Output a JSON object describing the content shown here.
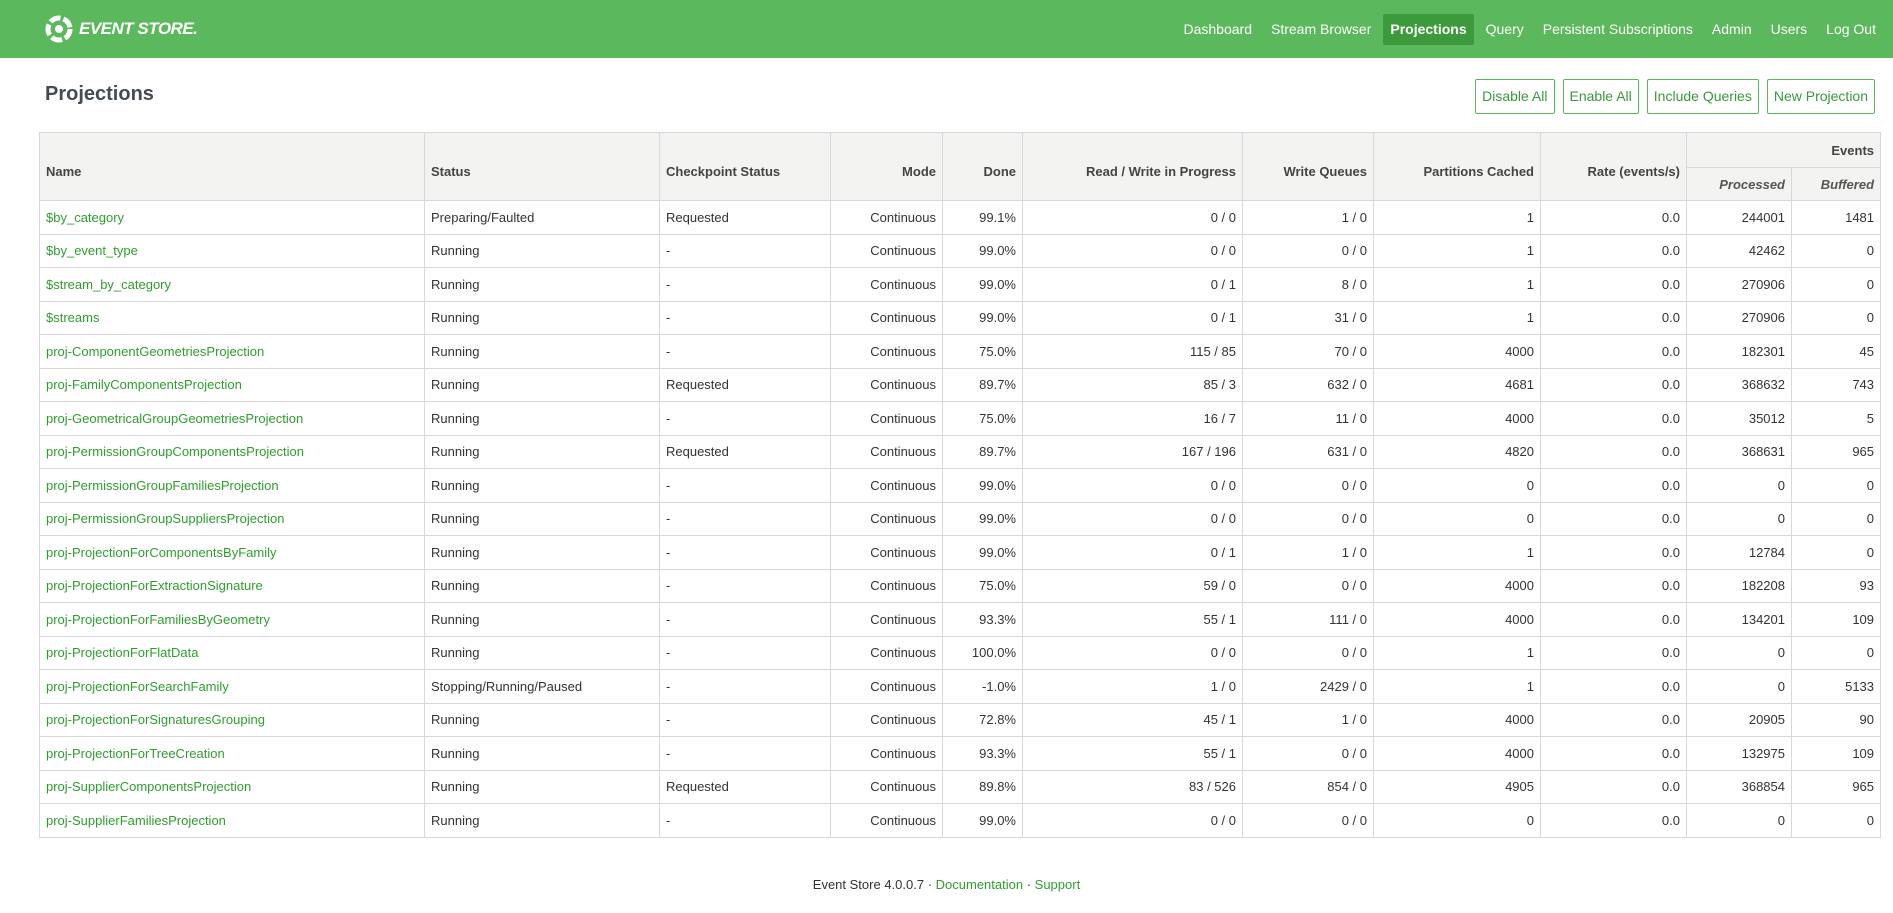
{
  "brand": {
    "logo_text": "EVENT STORE.",
    "colors": {
      "header": "#5cb85c",
      "link": "#2f9e2f",
      "active_nav": "#3c9a3c"
    }
  },
  "nav": {
    "items": [
      {
        "label": "Dashboard",
        "active": false
      },
      {
        "label": "Stream Browser",
        "active": false
      },
      {
        "label": "Projections",
        "active": true
      },
      {
        "label": "Query",
        "active": false
      },
      {
        "label": "Persistent Subscriptions",
        "active": false
      },
      {
        "label": "Admin",
        "active": false
      },
      {
        "label": "Users",
        "active": false
      },
      {
        "label": "Log Out",
        "active": false
      }
    ]
  },
  "page": {
    "title": "Projections",
    "actions": {
      "disable_all": "Disable All",
      "enable_all": "Enable All",
      "include_queries": "Include Queries",
      "new_projection": "New Projection"
    }
  },
  "table": {
    "headers": {
      "name": "Name",
      "status": "Status",
      "checkpoint": "Checkpoint Status",
      "mode": "Mode",
      "done": "Done",
      "rw": "Read / Write in Progress",
      "wq": "Write Queues",
      "pc": "Partitions Cached",
      "rate": "Rate (events/s)",
      "events": "Events",
      "processed": "Processed",
      "buffered": "Buffered"
    },
    "rows": [
      {
        "name": "$by_category",
        "status": "Preparing/Faulted",
        "checkpoint": "Requested",
        "mode": "Continuous",
        "done": "99.1%",
        "rw": "0 / 0",
        "wq": "1 / 0",
        "pc": "1",
        "rate": "0.0",
        "processed": "244001",
        "buffered": "1481"
      },
      {
        "name": "$by_event_type",
        "status": "Running",
        "checkpoint": "-",
        "mode": "Continuous",
        "done": "99.0%",
        "rw": "0 / 0",
        "wq": "0 / 0",
        "pc": "1",
        "rate": "0.0",
        "processed": "42462",
        "buffered": "0"
      },
      {
        "name": "$stream_by_category",
        "status": "Running",
        "checkpoint": "-",
        "mode": "Continuous",
        "done": "99.0%",
        "rw": "0 / 1",
        "wq": "8 / 0",
        "pc": "1",
        "rate": "0.0",
        "processed": "270906",
        "buffered": "0"
      },
      {
        "name": "$streams",
        "status": "Running",
        "checkpoint": "-",
        "mode": "Continuous",
        "done": "99.0%",
        "rw": "0 / 1",
        "wq": "31 / 0",
        "pc": "1",
        "rate": "0.0",
        "processed": "270906",
        "buffered": "0"
      },
      {
        "name": "proj-ComponentGeometriesProjection",
        "status": "Running",
        "checkpoint": "-",
        "mode": "Continuous",
        "done": "75.0%",
        "rw": "115 / 85",
        "wq": "70 / 0",
        "pc": "4000",
        "rate": "0.0",
        "processed": "182301",
        "buffered": "45"
      },
      {
        "name": "proj-FamilyComponentsProjection",
        "status": "Running",
        "checkpoint": "Requested",
        "mode": "Continuous",
        "done": "89.7%",
        "rw": "85 / 3",
        "wq": "632 / 0",
        "pc": "4681",
        "rate": "0.0",
        "processed": "368632",
        "buffered": "743"
      },
      {
        "name": "proj-GeometricalGroupGeometriesProjection",
        "status": "Running",
        "checkpoint": "-",
        "mode": "Continuous",
        "done": "75.0%",
        "rw": "16 / 7",
        "wq": "11 / 0",
        "pc": "4000",
        "rate": "0.0",
        "processed": "35012",
        "buffered": "5"
      },
      {
        "name": "proj-PermissionGroupComponentsProjection",
        "status": "Running",
        "checkpoint": "Requested",
        "mode": "Continuous",
        "done": "89.7%",
        "rw": "167 / 196",
        "wq": "631 / 0",
        "pc": "4820",
        "rate": "0.0",
        "processed": "368631",
        "buffered": "965"
      },
      {
        "name": "proj-PermissionGroupFamiliesProjection",
        "status": "Running",
        "checkpoint": "-",
        "mode": "Continuous",
        "done": "99.0%",
        "rw": "0 / 0",
        "wq": "0 / 0",
        "pc": "0",
        "rate": "0.0",
        "processed": "0",
        "buffered": "0"
      },
      {
        "name": "proj-PermissionGroupSuppliersProjection",
        "status": "Running",
        "checkpoint": "-",
        "mode": "Continuous",
        "done": "99.0%",
        "rw": "0 / 0",
        "wq": "0 / 0",
        "pc": "0",
        "rate": "0.0",
        "processed": "0",
        "buffered": "0"
      },
      {
        "name": "proj-ProjectionForComponentsByFamily",
        "status": "Running",
        "checkpoint": "-",
        "mode": "Continuous",
        "done": "99.0%",
        "rw": "0 / 1",
        "wq": "1 / 0",
        "pc": "1",
        "rate": "0.0",
        "processed": "12784",
        "buffered": "0"
      },
      {
        "name": "proj-ProjectionForExtractionSignature",
        "status": "Running",
        "checkpoint": "-",
        "mode": "Continuous",
        "done": "75.0%",
        "rw": "59 / 0",
        "wq": "0 / 0",
        "pc": "4000",
        "rate": "0.0",
        "processed": "182208",
        "buffered": "93"
      },
      {
        "name": "proj-ProjectionForFamiliesByGeometry",
        "status": "Running",
        "checkpoint": "-",
        "mode": "Continuous",
        "done": "93.3%",
        "rw": "55 / 1",
        "wq": "111 / 0",
        "pc": "4000",
        "rate": "0.0",
        "processed": "134201",
        "buffered": "109"
      },
      {
        "name": "proj-ProjectionForFlatData",
        "status": "Running",
        "checkpoint": "-",
        "mode": "Continuous",
        "done": "100.0%",
        "rw": "0 / 0",
        "wq": "0 / 0",
        "pc": "1",
        "rate": "0.0",
        "processed": "0",
        "buffered": "0"
      },
      {
        "name": "proj-ProjectionForSearchFamily",
        "status": "Stopping/Running/Paused",
        "checkpoint": "-",
        "mode": "Continuous",
        "done": "-1.0%",
        "rw": "1 / 0",
        "wq": "2429 / 0",
        "pc": "1",
        "rate": "0.0",
        "processed": "0",
        "buffered": "5133"
      },
      {
        "name": "proj-ProjectionForSignaturesGrouping",
        "status": "Running",
        "checkpoint": "-",
        "mode": "Continuous",
        "done": "72.8%",
        "rw": "45 / 1",
        "wq": "1 / 0",
        "pc": "4000",
        "rate": "0.0",
        "processed": "20905",
        "buffered": "90"
      },
      {
        "name": "proj-ProjectionForTreeCreation",
        "status": "Running",
        "checkpoint": "-",
        "mode": "Continuous",
        "done": "93.3%",
        "rw": "55 / 1",
        "wq": "0 / 0",
        "pc": "4000",
        "rate": "0.0",
        "processed": "132975",
        "buffered": "109"
      },
      {
        "name": "proj-SupplierComponentsProjection",
        "status": "Running",
        "checkpoint": "Requested",
        "mode": "Continuous",
        "done": "89.8%",
        "rw": "83 / 526",
        "wq": "854 / 0",
        "pc": "4905",
        "rate": "0.0",
        "processed": "368854",
        "buffered": "965"
      },
      {
        "name": "proj-SupplierFamiliesProjection",
        "status": "Running",
        "checkpoint": "-",
        "mode": "Continuous",
        "done": "99.0%",
        "rw": "0 / 0",
        "wq": "0 / 0",
        "pc": "0",
        "rate": "0.0",
        "processed": "0",
        "buffered": "0"
      }
    ]
  },
  "footer": {
    "version": "Event Store 4.0.0.7",
    "sep": " · ",
    "documentation": "Documentation",
    "support": "Support"
  }
}
